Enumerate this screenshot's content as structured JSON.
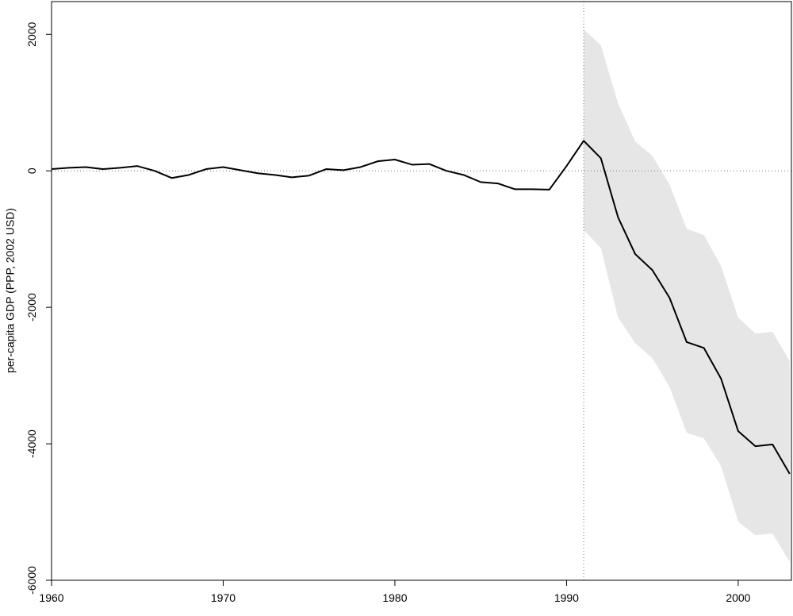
{
  "chart_data": {
    "type": "line",
    "y_label": "per-capita GDP (PPP, 2002 USD)",
    "x": [
      1960,
      1961,
      1962,
      1963,
      1964,
      1965,
      1966,
      1967,
      1968,
      1969,
      1970,
      1971,
      1972,
      1973,
      1974,
      1975,
      1976,
      1977,
      1978,
      1979,
      1980,
      1981,
      1982,
      1983,
      1984,
      1985,
      1986,
      1987,
      1988,
      1989,
      1990,
      1991,
      1992,
      1993,
      1994,
      1995,
      1996,
      1997,
      1998,
      1999,
      2000,
      2001,
      2002,
      2003
    ],
    "series": [
      {
        "color": "#000000",
        "values": [
          25,
          45,
          55,
          25,
          45,
          70,
          0,
          -105,
          -60,
          25,
          55,
          10,
          -35,
          -60,
          -95,
          -70,
          25,
          10,
          55,
          140,
          165,
          90,
          100,
          0,
          -60,
          -165,
          -185,
          -270,
          -270,
          -275,
          70,
          440,
          185,
          -680,
          -1220,
          -1455,
          -1860,
          -2510,
          -2595,
          -3045,
          -3815,
          -4035,
          -4010,
          -4440
        ]
      }
    ],
    "band": {
      "color": "#e6e6e6",
      "x": [
        1991,
        1992,
        1993,
        1994,
        1995,
        1996,
        1997,
        1998,
        1999,
        2000,
        2001,
        2002,
        2003
      ],
      "upper": [
        2070,
        1840,
        990,
        430,
        220,
        -200,
        -850,
        -940,
        -1395,
        -2150,
        -2385,
        -2360,
        -2790
      ],
      "lower": [
        -870,
        -1130,
        -2150,
        -2525,
        -2745,
        -3165,
        -3840,
        -3920,
        -4325,
        -5140,
        -5340,
        -5315,
        -5730
      ]
    },
    "vline": 1991,
    "hline": 0,
    "xlim": [
      1960,
      2003.1
    ],
    "ylim": [
      -6000,
      2480
    ],
    "xticks": [
      1960,
      1970,
      1980,
      1990,
      2000
    ],
    "yticks": [
      -6000,
      -4000,
      -2000,
      0,
      2000
    ]
  }
}
